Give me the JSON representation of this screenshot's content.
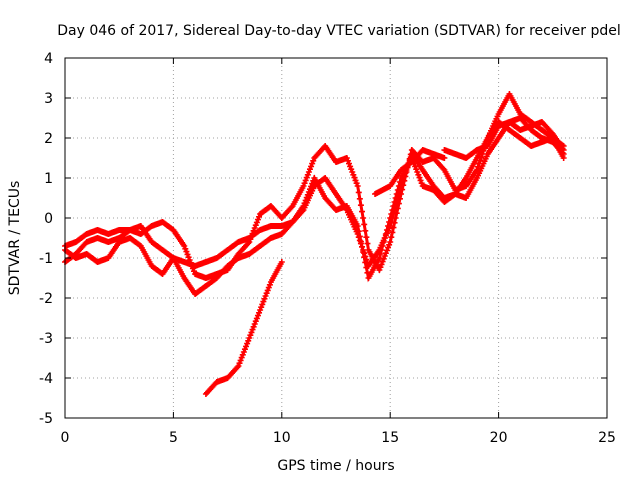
{
  "chart_data": {
    "type": "scatter",
    "title": "Day 046 of 2017, Sidereal Day-to-day VTEC variation (SDTVAR) for receiver pdel",
    "xlabel": "GPS time / hours",
    "ylabel": "SDTVAR / TECUs",
    "xlim": [
      0,
      25
    ],
    "ylim": [
      -5,
      4
    ],
    "xticks": [
      0,
      5,
      10,
      15,
      20,
      25
    ],
    "yticks": [
      -5,
      -4,
      -3,
      -2,
      -1,
      0,
      1,
      2,
      3,
      4
    ],
    "grid": true,
    "series_color": "#ff0000",
    "series": [
      {
        "name": "track-1",
        "points": [
          [
            0,
            -1.1
          ],
          [
            0.5,
            -0.9
          ],
          [
            1,
            -0.6
          ],
          [
            1.5,
            -0.5
          ],
          [
            2,
            -0.6
          ],
          [
            2.5,
            -0.5
          ],
          [
            3,
            -0.3
          ],
          [
            3.5,
            -0.2
          ],
          [
            4,
            -0.6
          ],
          [
            4.5,
            -0.8
          ],
          [
            5,
            -1.0
          ],
          [
            5.5,
            -1.1
          ],
          [
            6,
            -1.2
          ],
          [
            6.5,
            -1.1
          ],
          [
            7,
            -1.0
          ],
          [
            7.5,
            -0.8
          ],
          [
            8,
            -0.6
          ],
          [
            8.5,
            -0.5
          ],
          [
            9,
            -0.3
          ],
          [
            9.5,
            -0.2
          ],
          [
            10,
            -0.2
          ],
          [
            10.5,
            -0.1
          ],
          [
            11,
            0.2
          ],
          [
            11.5,
            0.8
          ],
          [
            12,
            1.0
          ],
          [
            12.5,
            0.6
          ],
          [
            13,
            0.2
          ],
          [
            13.5,
            -0.4
          ],
          [
            14,
            -1.2
          ],
          [
            14.5,
            -0.8
          ],
          [
            15,
            -0.2
          ],
          [
            15.5,
            0.8
          ],
          [
            16,
            1.6
          ],
          [
            16.5,
            1.2
          ],
          [
            17,
            0.8
          ],
          [
            17.5,
            0.5
          ],
          [
            18,
            0.6
          ],
          [
            18.5,
            1.0
          ],
          [
            19,
            1.5
          ],
          [
            19.5,
            2.0
          ],
          [
            20,
            2.4
          ],
          [
            20.5,
            2.2
          ],
          [
            21,
            2.0
          ],
          [
            21.5,
            1.8
          ],
          [
            22,
            1.9
          ],
          [
            22.5,
            2.0
          ],
          [
            23,
            1.5
          ]
        ]
      },
      {
        "name": "track-2",
        "points": [
          [
            0,
            -0.7
          ],
          [
            0.5,
            -0.6
          ],
          [
            1,
            -0.4
          ],
          [
            1.5,
            -0.3
          ],
          [
            2,
            -0.4
          ],
          [
            2.5,
            -0.3
          ],
          [
            3,
            -0.3
          ],
          [
            3.5,
            -0.4
          ],
          [
            4,
            -0.2
          ],
          [
            4.5,
            -0.1
          ],
          [
            5,
            -0.3
          ],
          [
            5.5,
            -0.7
          ],
          [
            6,
            -1.4
          ],
          [
            6.5,
            -1.5
          ],
          [
            7,
            -1.4
          ],
          [
            7.5,
            -1.3
          ],
          [
            8,
            -0.9
          ],
          [
            8.5,
            -0.6
          ],
          [
            9,
            0.1
          ],
          [
            9.5,
            0.3
          ],
          [
            10,
            0.0
          ],
          [
            10.5,
            0.3
          ],
          [
            11,
            0.8
          ],
          [
            11.5,
            1.5
          ],
          [
            12,
            1.8
          ],
          [
            12.5,
            1.4
          ],
          [
            13,
            1.5
          ],
          [
            13.5,
            0.8
          ],
          [
            14,
            -0.8
          ],
          [
            14.5,
            -1.3
          ],
          [
            15,
            -0.6
          ],
          [
            15.5,
            0.6
          ],
          [
            16,
            1.7
          ],
          [
            16.5,
            1.4
          ],
          [
            17,
            1.5
          ],
          [
            17.5,
            1.2
          ],
          [
            18,
            0.7
          ],
          [
            18.5,
            0.8
          ],
          [
            19,
            1.2
          ],
          [
            19.5,
            2.0
          ],
          [
            20,
            2.6
          ],
          [
            20.5,
            3.1
          ],
          [
            21,
            2.6
          ],
          [
            21.5,
            2.4
          ],
          [
            22,
            2.2
          ],
          [
            22.5,
            2.0
          ],
          [
            23,
            1.8
          ]
        ]
      },
      {
        "name": "track-3",
        "points": [
          [
            0,
            -0.8
          ],
          [
            0.5,
            -1.0
          ],
          [
            1,
            -0.9
          ],
          [
            1.5,
            -1.1
          ],
          [
            2,
            -1.0
          ],
          [
            2.5,
            -0.6
          ],
          [
            3,
            -0.5
          ],
          [
            3.5,
            -0.7
          ],
          [
            4,
            -1.2
          ],
          [
            4.5,
            -1.4
          ],
          [
            5,
            -1.0
          ],
          [
            5.5,
            -1.5
          ],
          [
            6,
            -1.9
          ],
          [
            6.5,
            -1.7
          ],
          [
            7,
            -1.5
          ],
          [
            7.5,
            -1.2
          ],
          [
            8,
            -1.0
          ],
          [
            8.5,
            -0.9
          ],
          [
            9,
            -0.7
          ],
          [
            9.5,
            -0.5
          ],
          [
            10,
            -0.4
          ],
          [
            10.5,
            -0.1
          ],
          [
            11,
            0.3
          ],
          [
            11.5,
            1.0
          ],
          [
            12,
            0.5
          ],
          [
            12.5,
            0.2
          ],
          [
            13,
            0.3
          ],
          [
            13.5,
            -0.2
          ],
          [
            14,
            -1.5
          ],
          [
            14.5,
            -1.0
          ],
          [
            15,
            0.0
          ],
          [
            15.5,
            1.0
          ],
          [
            16,
            1.5
          ],
          [
            16.5,
            0.8
          ],
          [
            17,
            0.7
          ],
          [
            17.5,
            0.4
          ],
          [
            18,
            0.6
          ],
          [
            18.5,
            0.5
          ],
          [
            19,
            1.0
          ],
          [
            19.5,
            1.6
          ],
          [
            20,
            2.0
          ],
          [
            20.5,
            2.4
          ],
          [
            21,
            2.2
          ],
          [
            21.5,
            2.3
          ],
          [
            22,
            2.4
          ],
          [
            22.5,
            2.1
          ],
          [
            23,
            1.7
          ]
        ]
      },
      {
        "name": "track-4",
        "points": [
          [
            6.5,
            -4.4
          ],
          [
            7,
            -4.1
          ],
          [
            7.5,
            -4.0
          ],
          [
            8,
            -3.7
          ],
          [
            8.5,
            -3.0
          ],
          [
            9,
            -2.3
          ],
          [
            9.5,
            -1.6
          ],
          [
            10,
            -1.1
          ]
        ]
      },
      {
        "name": "track-5",
        "points": [
          [
            14.3,
            0.6
          ],
          [
            15,
            0.8
          ],
          [
            15.5,
            1.2
          ],
          [
            16,
            1.4
          ],
          [
            16.5,
            1.7
          ],
          [
            17,
            1.6
          ],
          [
            17.5,
            1.5
          ]
        ]
      },
      {
        "name": "track-6",
        "points": [
          [
            17.5,
            1.7
          ],
          [
            18,
            1.6
          ],
          [
            18.5,
            1.5
          ],
          [
            19,
            1.7
          ],
          [
            19.5,
            1.8
          ],
          [
            20,
            2.3
          ],
          [
            20.5,
            2.4
          ],
          [
            21,
            2.5
          ],
          [
            21.5,
            2.2
          ],
          [
            22,
            2.0
          ],
          [
            22.5,
            1.9
          ],
          [
            23,
            1.6
          ]
        ]
      }
    ]
  }
}
